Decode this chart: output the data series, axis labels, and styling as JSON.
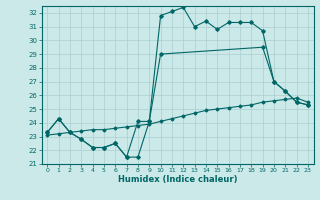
{
  "xlabel": "Humidex (Indice chaleur)",
  "xlim": [
    -0.5,
    23.5
  ],
  "ylim": [
    21,
    32.5
  ],
  "xticks": [
    0,
    1,
    2,
    3,
    4,
    5,
    6,
    7,
    8,
    9,
    10,
    11,
    12,
    13,
    14,
    15,
    16,
    17,
    18,
    19,
    20,
    21,
    22,
    23
  ],
  "yticks": [
    21,
    22,
    23,
    24,
    25,
    26,
    27,
    28,
    29,
    30,
    31,
    32
  ],
  "background_color": "#cce9e9",
  "grid_color": "#aacfcf",
  "line_color": "#006666",
  "line1_x": [
    0,
    1,
    2,
    3,
    4,
    5,
    6,
    7,
    8,
    9,
    10,
    11,
    12,
    13,
    14,
    15,
    16,
    17,
    18,
    19,
    20,
    21,
    22,
    23
  ],
  "line1_y": [
    23.3,
    24.3,
    23.3,
    22.8,
    22.2,
    22.2,
    22.5,
    21.5,
    21.5,
    24.1,
    31.8,
    32.1,
    32.4,
    31.0,
    31.4,
    30.8,
    31.3,
    31.3,
    31.3,
    30.7,
    27.0,
    26.3,
    25.5,
    25.3
  ],
  "line2_x": [
    0,
    1,
    2,
    3,
    4,
    5,
    6,
    7,
    8,
    9,
    10,
    19,
    20,
    21,
    22,
    23
  ],
  "line2_y": [
    23.3,
    24.3,
    23.3,
    22.8,
    22.2,
    22.2,
    22.5,
    21.5,
    24.1,
    24.1,
    29.0,
    29.5,
    27.0,
    26.3,
    25.5,
    25.3
  ],
  "line3_x": [
    0,
    1,
    2,
    3,
    4,
    5,
    6,
    7,
    8,
    9,
    10,
    11,
    12,
    13,
    14,
    15,
    16,
    17,
    18,
    19,
    20,
    21,
    22,
    23
  ],
  "line3_y": [
    23.1,
    23.2,
    23.3,
    23.4,
    23.5,
    23.5,
    23.6,
    23.7,
    23.8,
    23.9,
    24.1,
    24.3,
    24.5,
    24.7,
    24.9,
    25.0,
    25.1,
    25.2,
    25.3,
    25.5,
    25.6,
    25.7,
    25.8,
    25.5
  ]
}
